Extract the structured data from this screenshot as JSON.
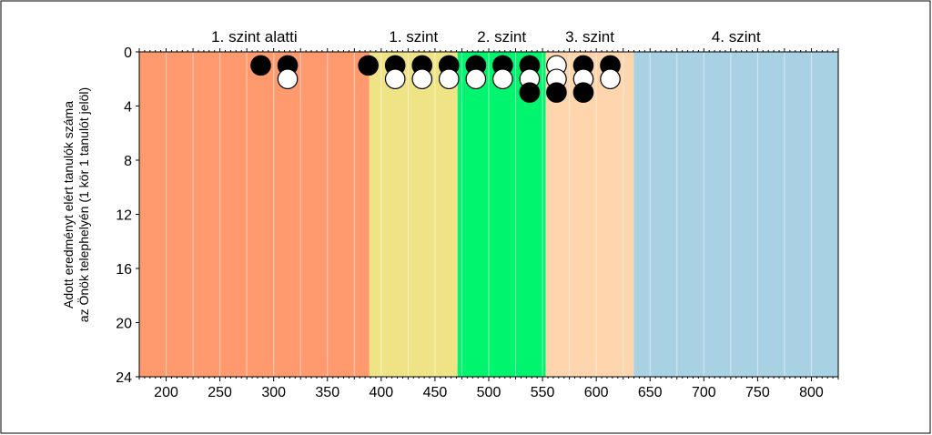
{
  "chart_data": {
    "type": "scatter",
    "title": "",
    "xlabel": "",
    "ylabel_line1": "Adott eredményt elért tanulók száma",
    "ylabel_line2": "az Önök telephelyén (1 kör 1 tanulót jelöl)",
    "xlim": [
      175,
      825
    ],
    "ylim": [
      0,
      24
    ],
    "y_reversed": true,
    "x_ticks": [
      200,
      250,
      300,
      350,
      400,
      450,
      500,
      550,
      600,
      650,
      700,
      750,
      800
    ],
    "y_ticks": [
      0,
      4,
      8,
      12,
      16,
      20,
      24
    ],
    "grid": "vertical minor every 25",
    "bands": [
      {
        "label": "1. szint alatti",
        "from": 175,
        "to": 389,
        "color": "#FF9A6E"
      },
      {
        "label": "1. szint",
        "from": 389,
        "to": 471,
        "color": "#EEE385"
      },
      {
        "label": "2. szint",
        "from": 471,
        "to": 553,
        "color": "#00F56E"
      },
      {
        "label": "3. szint",
        "from": 553,
        "to": 635,
        "color": "#FFD5AE"
      },
      {
        "label": "4. szint",
        "from": 635,
        "to": 825,
        "color": "#A8D1E3"
      }
    ],
    "points": [
      {
        "x": 288,
        "y": 1,
        "fill": "black"
      },
      {
        "x": 313,
        "y": 1,
        "fill": "black"
      },
      {
        "x": 313,
        "y": 2,
        "fill": "white"
      },
      {
        "x": 388,
        "y": 1,
        "fill": "black"
      },
      {
        "x": 413,
        "y": 1,
        "fill": "black"
      },
      {
        "x": 413,
        "y": 2,
        "fill": "white"
      },
      {
        "x": 438,
        "y": 1,
        "fill": "black"
      },
      {
        "x": 438,
        "y": 2,
        "fill": "white"
      },
      {
        "x": 463,
        "y": 1,
        "fill": "black"
      },
      {
        "x": 463,
        "y": 2,
        "fill": "white"
      },
      {
        "x": 488,
        "y": 1,
        "fill": "black"
      },
      {
        "x": 488,
        "y": 2,
        "fill": "white"
      },
      {
        "x": 513,
        "y": 1,
        "fill": "black"
      },
      {
        "x": 513,
        "y": 2,
        "fill": "white"
      },
      {
        "x": 538,
        "y": 1,
        "fill": "black"
      },
      {
        "x": 538,
        "y": 2,
        "fill": "white"
      },
      {
        "x": 538,
        "y": 3,
        "fill": "black"
      },
      {
        "x": 563,
        "y": 1,
        "fill": "white"
      },
      {
        "x": 563,
        "y": 2,
        "fill": "white"
      },
      {
        "x": 563,
        "y": 3,
        "fill": "black"
      },
      {
        "x": 588,
        "y": 1,
        "fill": "black"
      },
      {
        "x": 588,
        "y": 2,
        "fill": "white"
      },
      {
        "x": 588,
        "y": 3,
        "fill": "black"
      },
      {
        "x": 613,
        "y": 1,
        "fill": "black"
      },
      {
        "x": 613,
        "y": 2,
        "fill": "white"
      }
    ]
  }
}
